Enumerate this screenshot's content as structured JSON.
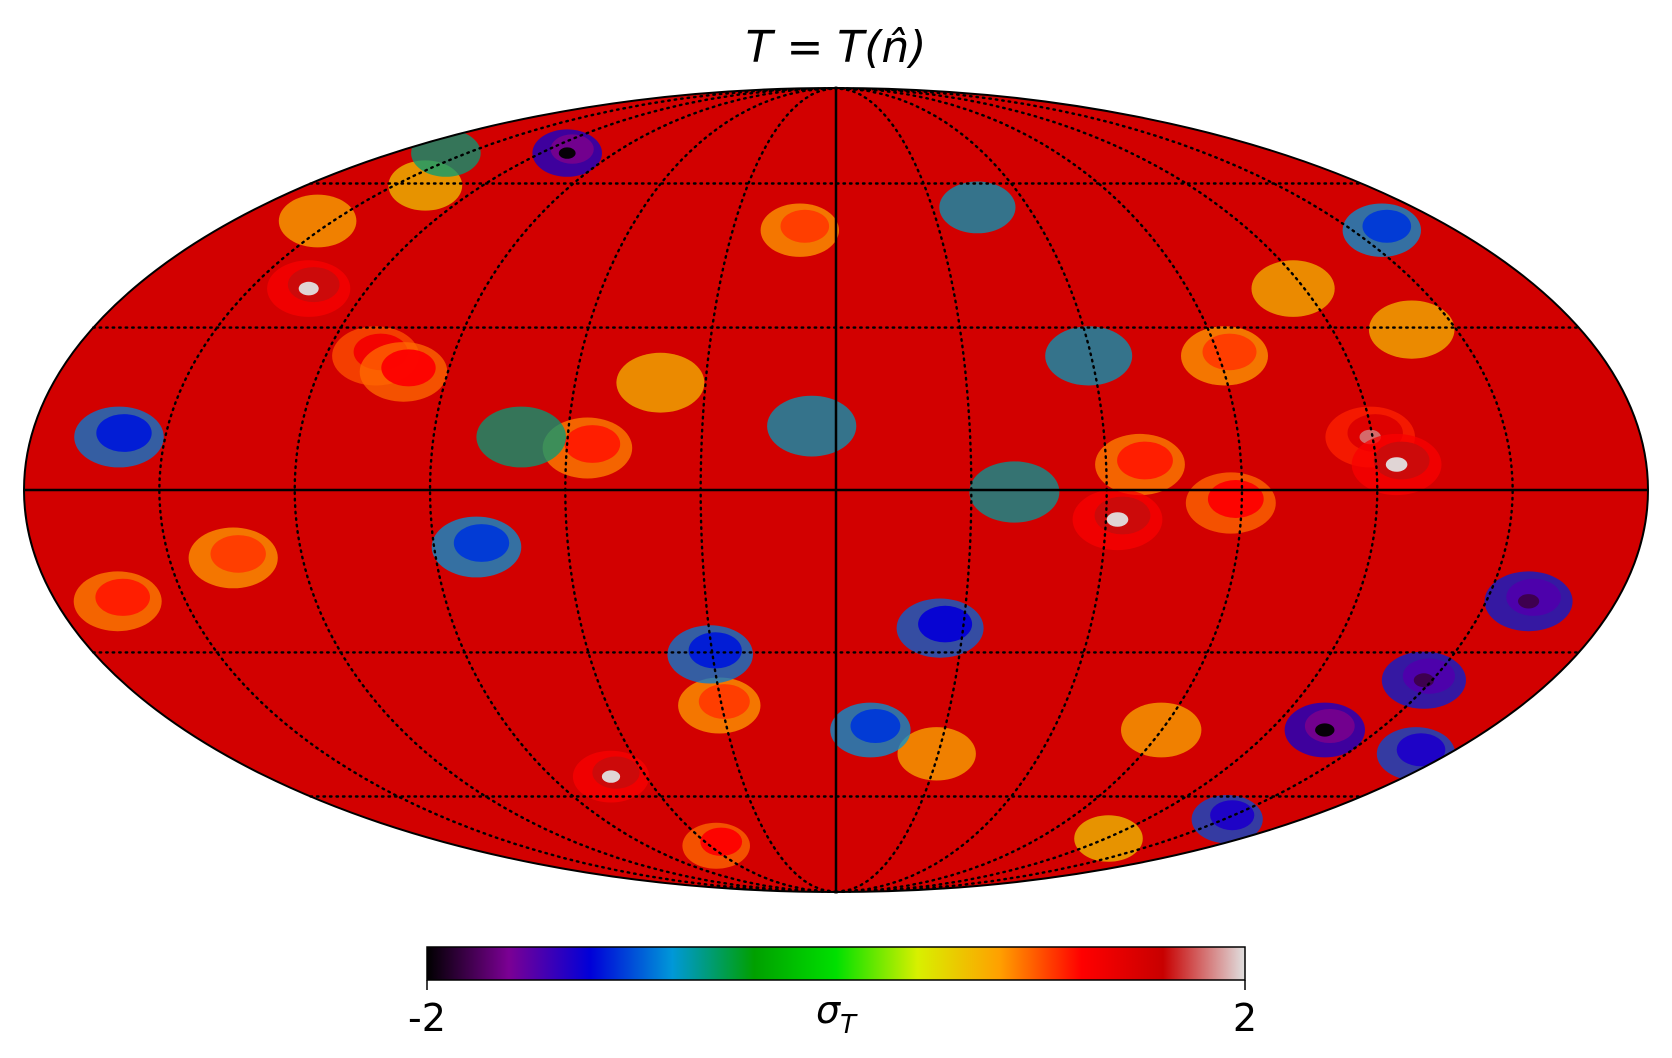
{
  "chart_data": {
    "type": "heatmap",
    "projection": "mollweide",
    "title": "T = T(n̂)",
    "colorbar": {
      "min_label": "-2",
      "max_label": "2",
      "unit_label": "σ",
      "unit_subscript": "T",
      "range": [
        -2,
        2
      ],
      "colormap": [
        "#000000",
        "#7b0094",
        "#0000d8",
        "#0098d8",
        "#00a000",
        "#00e000",
        "#d8f000",
        "#ffa000",
        "#ff0000",
        "#c80000",
        "#e0e0e0"
      ]
    },
    "graticule": {
      "meridian_step_deg": 30,
      "parallel_step_deg": 30,
      "style": "dotted"
    },
    "hot_spots": [
      {
        "lon": 135,
        "lat": 38,
        "value": 2.0
      },
      {
        "lon": 108,
        "lat": 25,
        "value": 1.6
      },
      {
        "lon": 100,
        "lat": 22,
        "value": 1.5
      },
      {
        "lon": 155,
        "lat": 52,
        "value": 1.2
      },
      {
        "lon": 55,
        "lat": 8,
        "value": 1.4
      },
      {
        "lon": 40,
        "lat": 20,
        "value": 1.1
      },
      {
        "lon": 10,
        "lat": 50,
        "value": 1.3
      },
      {
        "lon": -92,
        "lat": 25,
        "value": 1.3
      },
      {
        "lon": -118,
        "lat": 38,
        "value": 1.1
      },
      {
        "lon": -68,
        "lat": 5,
        "value": 1.4
      },
      {
        "lon": -63,
        "lat": -5,
        "value": 2.0
      },
      {
        "lon": -88,
        "lat": -2,
        "value": 1.5
      },
      {
        "lon": -120,
        "lat": 10,
        "value": 1.8
      },
      {
        "lon": -125,
        "lat": 5,
        "value": 2.0
      },
      {
        "lon": -140,
        "lat": 30,
        "value": 1.1
      },
      {
        "lon": 165,
        "lat": -20,
        "value": 1.4
      },
      {
        "lon": 135,
        "lat": -12,
        "value": 1.3
      },
      {
        "lon": 70,
        "lat": -55,
        "value": 2.0
      },
      {
        "lon": 55,
        "lat": -72,
        "value": 1.5
      },
      {
        "lon": -30,
        "lat": -50,
        "value": 1.2
      },
      {
        "lon": -90,
        "lat": -45,
        "value": 1.2
      },
      {
        "lon": -120,
        "lat": -70,
        "value": 1.0
      },
      {
        "lon": 140,
        "lat": 60,
        "value": 1.0
      },
      {
        "lon": 30,
        "lat": -40,
        "value": 1.3
      }
    ],
    "cold_spots": [
      {
        "lon": 110,
        "lat": 68,
        "value": -2.0
      },
      {
        "lon": 160,
        "lat": 68,
        "value": -1.0
      },
      {
        "lon": 5,
        "lat": 12,
        "value": -1.2
      },
      {
        "lon": -25,
        "lat": -25,
        "value": -1.5
      },
      {
        "lon": 30,
        "lat": -30,
        "value": -1.4
      },
      {
        "lon": -60,
        "lat": 25,
        "value": -1.2
      },
      {
        "lon": -160,
        "lat": -20,
        "value": -1.8
      },
      {
        "lon": -148,
        "lat": -35,
        "value": -1.8
      },
      {
        "lon": -135,
        "lat": -45,
        "value": -2.0
      },
      {
        "lon": -150,
        "lat": -65,
        "value": -1.6
      },
      {
        "lon": -170,
        "lat": -50,
        "value": -1.6
      },
      {
        "lon": -160,
        "lat": 50,
        "value": -1.3
      },
      {
        "lon": 160,
        "lat": 10,
        "value": -1.4
      },
      {
        "lon": 80,
        "lat": -10,
        "value": -1.3
      },
      {
        "lon": -10,
        "lat": -45,
        "value": -1.3
      },
      {
        "lon": -45,
        "lat": 55,
        "value": -1.2
      },
      {
        "lon": 70,
        "lat": 10,
        "value": -1.0
      },
      {
        "lon": -40,
        "lat": 0,
        "value": -1.1
      }
    ]
  }
}
